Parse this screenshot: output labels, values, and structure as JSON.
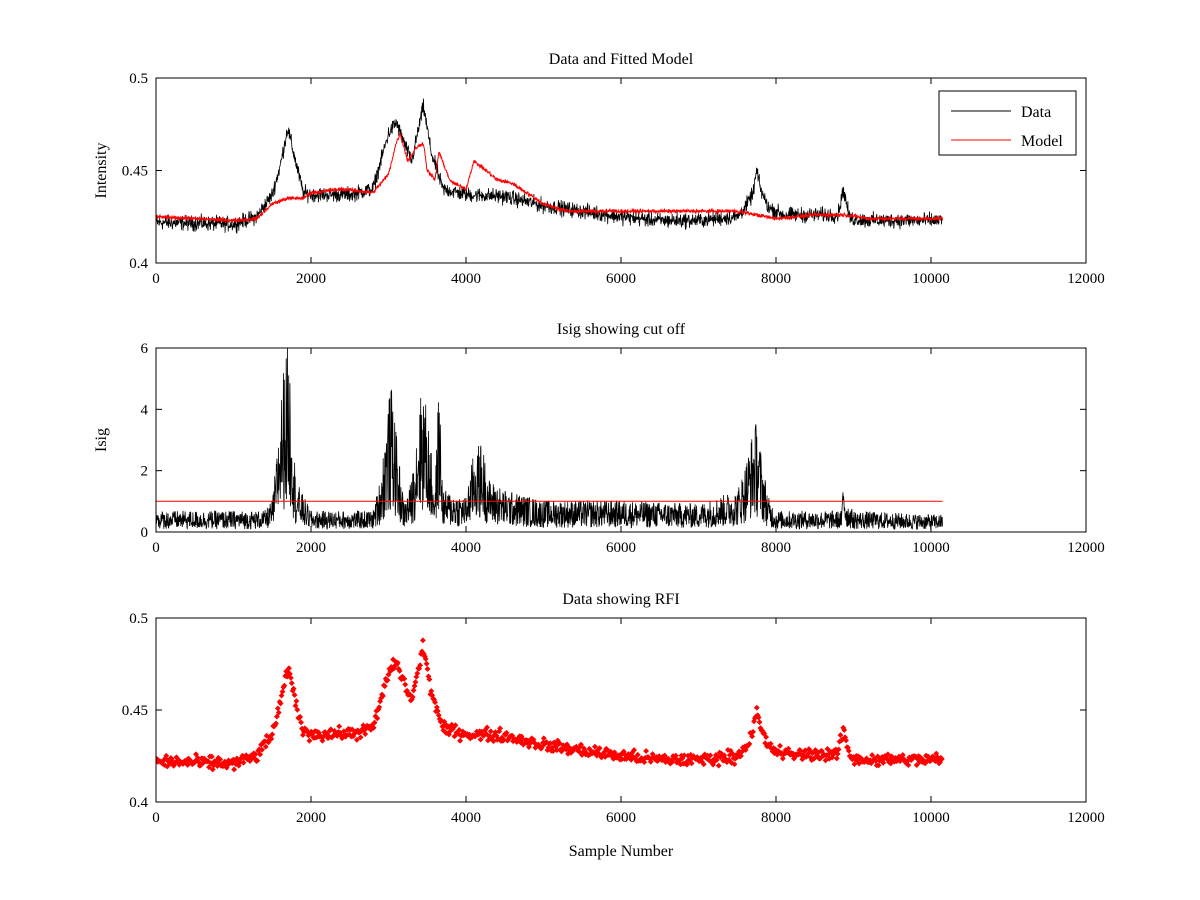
{
  "chart_data": [
    {
      "type": "line",
      "title": "Data and Fitted Model",
      "xlabel": "",
      "ylabel": "Intensity",
      "xlim": [
        0,
        12000
      ],
      "ylim": [
        0.4,
        0.5
      ],
      "xticks": [
        "0",
        "2000",
        "4000",
        "6000",
        "8000",
        "10000",
        "12000"
      ],
      "yticks": [
        "0.4",
        "0.45",
        "0.5"
      ],
      "legend_position": "top-right",
      "grid": false,
      "series": [
        {
          "name": "Data",
          "color": "#000000",
          "noise": 0.006,
          "x": [
            0,
            1000,
            1300,
            1500,
            1600,
            1700,
            1800,
            1900,
            2000,
            2500,
            2800,
            2900,
            3000,
            3100,
            3200,
            3300,
            3400,
            3450,
            3550,
            3700,
            4000,
            4500,
            5000,
            6000,
            6500,
            7000,
            7500,
            7600,
            7700,
            7750,
            7800,
            7900,
            8100,
            8500,
            8800,
            8870,
            8950,
            9200,
            10000,
            10150
          ],
          "y": [
            0.422,
            0.421,
            0.425,
            0.437,
            0.452,
            0.473,
            0.455,
            0.438,
            0.437,
            0.437,
            0.44,
            0.455,
            0.47,
            0.476,
            0.465,
            0.455,
            0.475,
            0.485,
            0.46,
            0.44,
            0.437,
            0.436,
            0.431,
            0.425,
            0.423,
            0.423,
            0.425,
            0.43,
            0.437,
            0.45,
            0.44,
            0.43,
            0.426,
            0.426,
            0.426,
            0.44,
            0.424,
            0.423,
            0.423,
            0.423
          ]
        },
        {
          "name": "Model",
          "color": "#ff0000",
          "noise": 0.0015,
          "x": [
            0,
            1000,
            1300,
            1500,
            1700,
            1900,
            2000,
            2400,
            2800,
            3000,
            3100,
            3150,
            3250,
            3350,
            3450,
            3500,
            3600,
            3650,
            3800,
            4000,
            4100,
            4200,
            4400,
            4600,
            5000,
            5300,
            6000,
            7000,
            7500,
            8000,
            8500,
            8900,
            9200,
            10000,
            10150
          ],
          "y": [
            0.425,
            0.423,
            0.424,
            0.432,
            0.435,
            0.435,
            0.438,
            0.44,
            0.438,
            0.448,
            0.465,
            0.47,
            0.455,
            0.462,
            0.465,
            0.45,
            0.445,
            0.46,
            0.444,
            0.44,
            0.455,
            0.452,
            0.445,
            0.443,
            0.432,
            0.428,
            0.428,
            0.428,
            0.428,
            0.424,
            0.426,
            0.426,
            0.424,
            0.424,
            0.424
          ]
        }
      ]
    },
    {
      "type": "line",
      "title": "Isig showing cut off",
      "xlabel": "",
      "ylabel": "Isig",
      "xlim": [
        0,
        12000
      ],
      "ylim": [
        0,
        6
      ],
      "xticks": [
        "0",
        "2000",
        "4000",
        "6000",
        "8000",
        "10000",
        "12000"
      ],
      "yticks": [
        "0",
        "2",
        "4",
        "6"
      ],
      "grid": false,
      "series": [
        {
          "color": "#000000",
          "x": [
            0,
            1400,
            1500,
            1550,
            1600,
            1650,
            1700,
            1750,
            1800,
            2000,
            2800,
            2900,
            3000,
            3050,
            3100,
            3200,
            3300,
            3400,
            3450,
            3500,
            3600,
            3650,
            3700,
            4000,
            4100,
            4200,
            4300,
            4500,
            5000,
            6000,
            7000,
            7500,
            7600,
            7700,
            7750,
            7800,
            7900,
            8000,
            8850,
            8870,
            8900,
            9000,
            10000,
            10150
          ],
          "y": [
            0.6,
            0.6,
            0.9,
            2.0,
            3.5,
            4.8,
            5.4,
            4.2,
            1.5,
            0.6,
            0.6,
            1.6,
            3.8,
            4.2,
            2.8,
            0.8,
            1.5,
            3.8,
            4.2,
            3.4,
            1.2,
            4.4,
            1.2,
            1.0,
            2.3,
            2.6,
            1.5,
            1.2,
            0.9,
            0.9,
            0.8,
            1.2,
            1.9,
            2.9,
            3.2,
            2.4,
            1.0,
            0.6,
            0.6,
            2.0,
            0.9,
            0.6,
            0.5,
            0.5
          ]
        },
        {
          "color": "#ff0000",
          "x": [
            0,
            10150
          ],
          "y": [
            1.0,
            1.0
          ]
        }
      ]
    },
    {
      "type": "scatter",
      "title": "Data showing RFI",
      "xlabel": "Sample Number",
      "ylabel": "",
      "xlim": [
        0,
        12000
      ],
      "ylim": [
        0.4,
        0.5
      ],
      "xticks": [
        "0",
        "2000",
        "4000",
        "6000",
        "8000",
        "10000",
        "12000"
      ],
      "yticks": [
        "0.4",
        "0.45",
        "0.5"
      ],
      "grid": false,
      "series": [
        {
          "color": "#ff0000",
          "noise": 0.005,
          "x": [
            0,
            1000,
            1300,
            1500,
            1600,
            1700,
            1800,
            1900,
            2000,
            2500,
            2800,
            2900,
            3000,
            3100,
            3200,
            3300,
            3400,
            3450,
            3550,
            3700,
            4000,
            4500,
            5000,
            6000,
            6500,
            7000,
            7500,
            7600,
            7700,
            7750,
            7800,
            7900,
            8100,
            8500,
            8800,
            8870,
            8950,
            9200,
            10000,
            10150
          ],
          "y": [
            0.422,
            0.421,
            0.425,
            0.437,
            0.452,
            0.473,
            0.455,
            0.438,
            0.437,
            0.437,
            0.44,
            0.455,
            0.47,
            0.476,
            0.465,
            0.455,
            0.475,
            0.485,
            0.46,
            0.44,
            0.437,
            0.436,
            0.431,
            0.425,
            0.423,
            0.423,
            0.425,
            0.43,
            0.437,
            0.45,
            0.44,
            0.43,
            0.426,
            0.426,
            0.426,
            0.44,
            0.424,
            0.423,
            0.423,
            0.423
          ]
        }
      ]
    }
  ]
}
